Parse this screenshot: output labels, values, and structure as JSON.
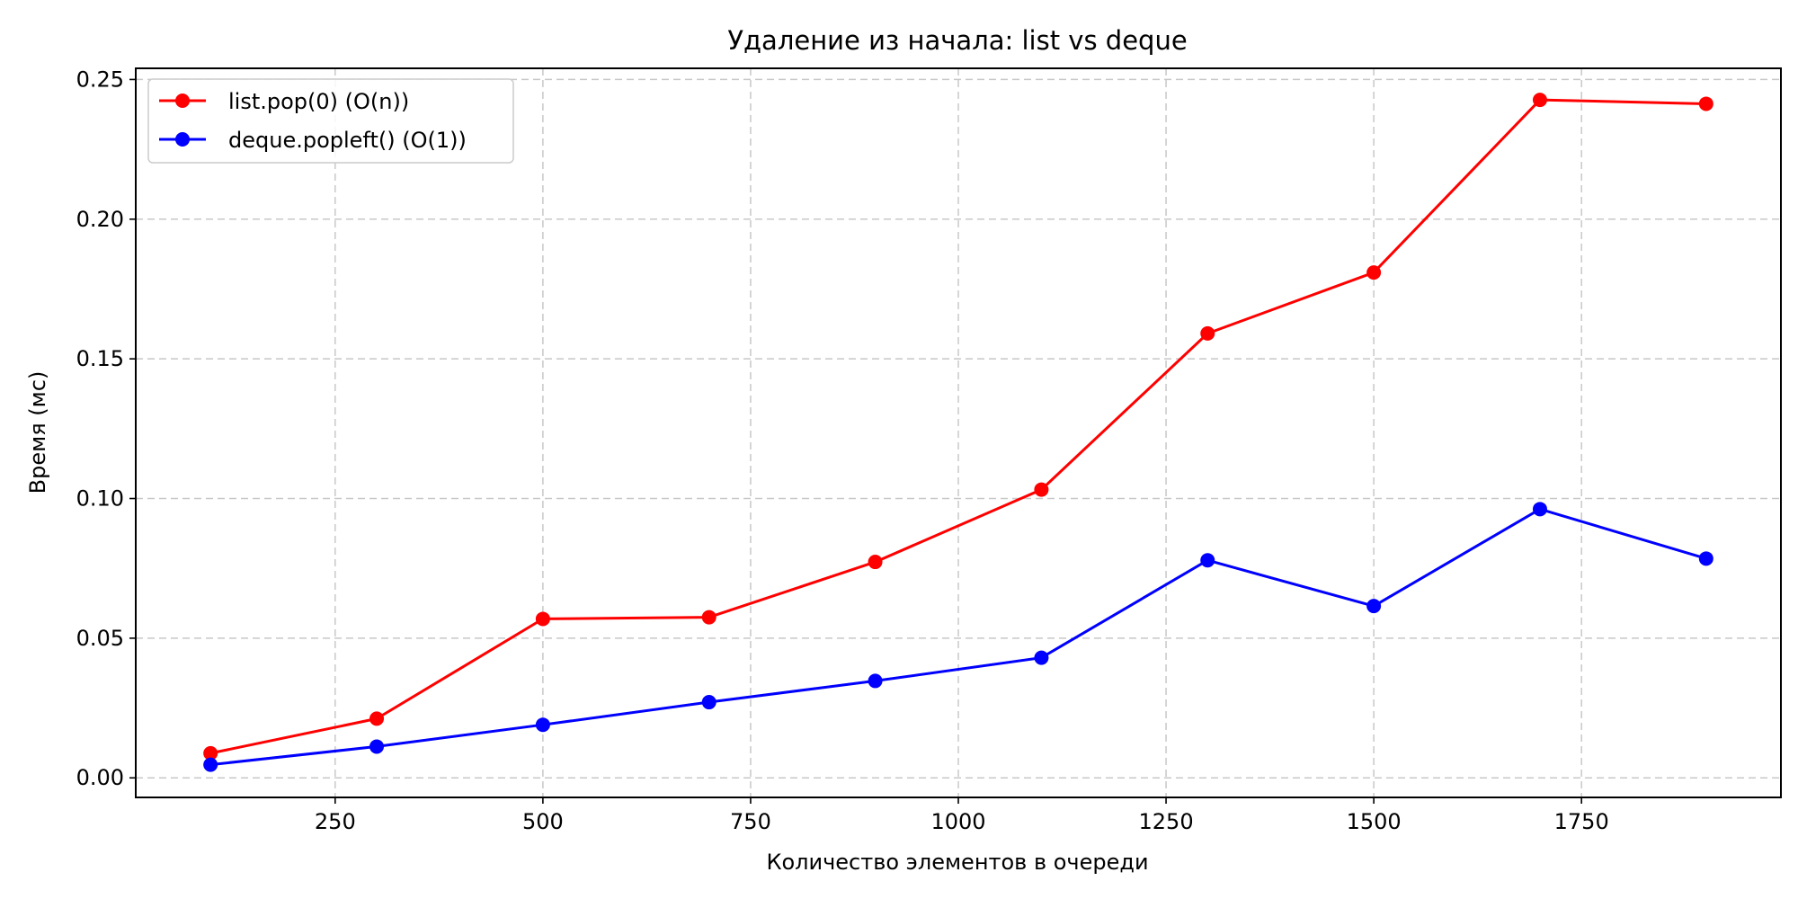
{
  "chart_data": {
    "type": "line",
    "title": "Удаление из начала: list vs deque",
    "xlabel": "Количество элементов в очереди",
    "ylabel": "Время (мс)",
    "xlim": [
      10,
      1990
    ],
    "ylim": [
      -0.007,
      0.254
    ],
    "xticks": [
      250,
      500,
      750,
      1000,
      1250,
      1500,
      1750
    ],
    "yticks": [
      0.0,
      0.05,
      0.1,
      0.15,
      0.2,
      0.25
    ],
    "ytick_labels": [
      "0.00",
      "0.05",
      "0.10",
      "0.15",
      "0.20",
      "0.25"
    ],
    "grid": true,
    "legend_position": "top-left",
    "x": [
      100,
      300,
      500,
      700,
      900,
      1100,
      1300,
      1500,
      1700,
      1900
    ],
    "series": [
      {
        "name": "list.pop(0) (O(n))",
        "color": "#ff0000",
        "marker": "circle",
        "values": [
          0.0088,
          0.0212,
          0.0569,
          0.0575,
          0.0773,
          0.1032,
          0.1591,
          0.1809,
          0.2427,
          0.2413
        ]
      },
      {
        "name": "deque.popleft() (O(1))",
        "color": "#0000ff",
        "marker": "circle",
        "values": [
          0.0047,
          0.0112,
          0.019,
          0.0271,
          0.0347,
          0.043,
          0.0779,
          0.0615,
          0.0962,
          0.0785
        ]
      }
    ]
  }
}
